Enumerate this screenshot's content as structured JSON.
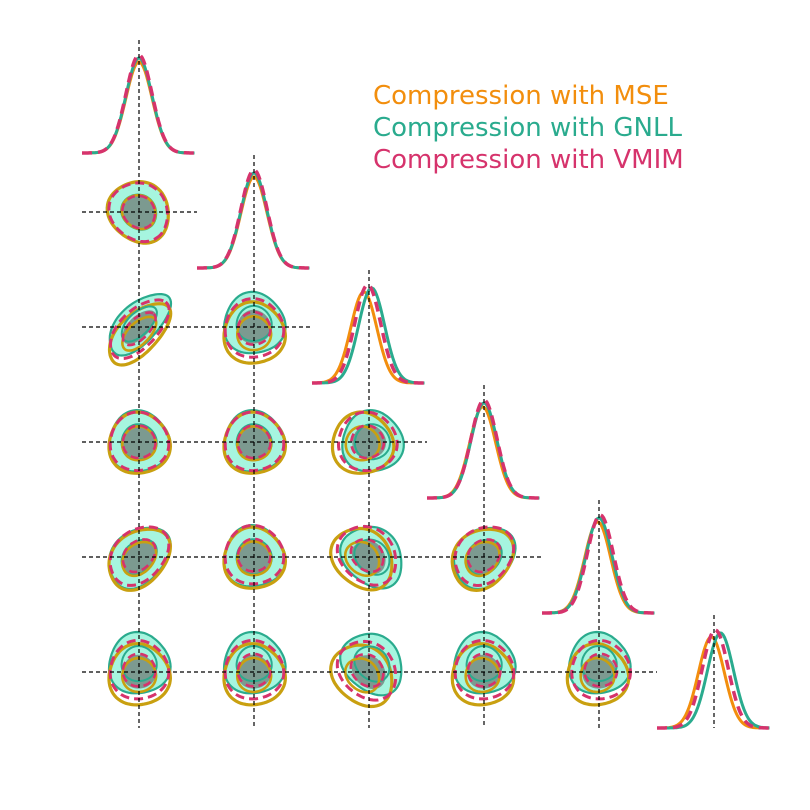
{
  "colors": {
    "mse": "#f28e0d",
    "gnll": "#2aab8e",
    "vmim": "#d6336c",
    "mse_contour": "#c9a010",
    "gnll_fill": "#a6f5df",
    "inner_fill": "#7c9a90",
    "marker": "#000000",
    "background": "#ffffff"
  },
  "legend": {
    "entries": [
      {
        "label": "Compression with MSE",
        "color": "#f28e0d"
      },
      {
        "label": "Compression with GNLL",
        "color": "#2aab8e"
      },
      {
        "label": "Compression with VMIM",
        "color": "#d6336c"
      }
    ]
  },
  "chart_data": {
    "type": "corner",
    "n_params": 6,
    "axes_visible": false,
    "grid": false,
    "legend_position": "top-right",
    "truth_markers": "dashed black lines at the fiducial value of every parameter",
    "series": [
      {
        "name": "Compression with MSE",
        "color": "#f28e0d",
        "line_style": "solid",
        "marginal_mean": [
          0.0,
          0.0,
          -0.2,
          -0.05,
          -0.05,
          -0.1
        ],
        "marginal_std": [
          1,
          1,
          1,
          1,
          1,
          1
        ]
      },
      {
        "name": "Compression with GNLL",
        "color": "#2aab8e",
        "line_style": "solid",
        "marginal_mean": [
          0.0,
          0.0,
          0.1,
          0.0,
          0.0,
          0.25
        ],
        "marginal_std": [
          1,
          1,
          1,
          1,
          1,
          1
        ]
      },
      {
        "name": "Compression with VMIM",
        "color": "#d6336c",
        "line_style": "dashed",
        "marginal_mean": [
          0.0,
          0.0,
          -0.05,
          0.0,
          0.05,
          0.05
        ],
        "marginal_std": [
          1,
          1,
          1,
          1,
          1,
          1
        ]
      }
    ],
    "pairs": [
      {
        "row": 1,
        "col": 0,
        "correlation": 0.1
      },
      {
        "row": 2,
        "col": 0,
        "correlation": -0.6
      },
      {
        "row": 2,
        "col": 1,
        "correlation": 0.0
      },
      {
        "row": 3,
        "col": 0,
        "correlation": 0.0
      },
      {
        "row": 3,
        "col": 1,
        "correlation": 0.0
      },
      {
        "row": 3,
        "col": 2,
        "correlation": 0.0
      },
      {
        "row": 4,
        "col": 0,
        "correlation": -0.3
      },
      {
        "row": 4,
        "col": 1,
        "correlation": 0.0
      },
      {
        "row": 4,
        "col": 2,
        "correlation": 0.2
      },
      {
        "row": 4,
        "col": 3,
        "correlation": -0.2
      },
      {
        "row": 5,
        "col": 0,
        "correlation": 0.0
      },
      {
        "row": 5,
        "col": 1,
        "correlation": 0.0
      },
      {
        "row": 5,
        "col": 2,
        "correlation": 0.2
      },
      {
        "row": 5,
        "col": 3,
        "correlation": 0.0
      },
      {
        "row": 5,
        "col": 4,
        "correlation": 0.0
      }
    ]
  }
}
